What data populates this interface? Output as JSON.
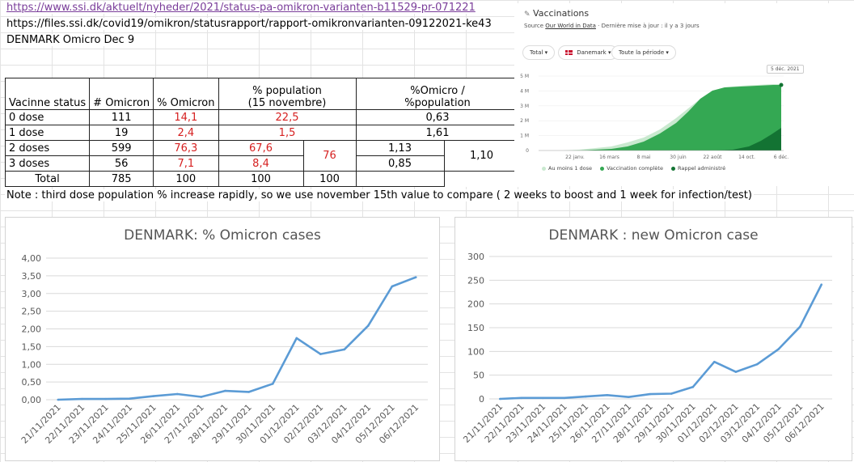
{
  "header": {
    "link1": "https://www.ssi.dk/aktuelt/nyheder/2021/status-pa-omikron-varianten-b11529-pr-071221",
    "link2": "https://files.ssi.dk/covid19/omikron/statusrapport/rapport-omikronvarianten-09122021-ke43",
    "title": "DENMARK Omicro  Dec 9"
  },
  "table": {
    "h_status": "Vacinne status",
    "h_omicron": "# Omicron",
    "h_pct_omicron": "% Omicron",
    "h_pct_pop_1": "% population",
    "h_pct_pop_2": "(15 novembre)",
    "h_ratio_1": "%Omicro /",
    "h_ratio_2": "%population",
    "rows": [
      {
        "status": "0 dose",
        "count": "111",
        "pct": "14,1",
        "pop": "22,5",
        "ratio": "0,63"
      },
      {
        "status": "1 dose",
        "count": "19",
        "pct": "2,4",
        "pop": "1,5",
        "ratio": "1,61"
      },
      {
        "status": "2 doses",
        "count": "599",
        "pct": "76,3",
        "pop": "67,6",
        "ratio": "1,13"
      },
      {
        "status": "3 doses",
        "count": "56",
        "pct": "7,1",
        "pop": "8,4",
        "ratio": "0,85"
      }
    ],
    "merged_pop_23": "76",
    "merged_ratio_23": "1,10",
    "total": {
      "status": "Total",
      "count": "785",
      "pct": "100",
      "pop": "100",
      "pop2": "100"
    }
  },
  "note": "Note : third dose population % increase rapidly, so we use november 15th value to compare ( 2 weeks to boost and 1 week for infection/test)",
  "vaccinations": {
    "title": "Vaccinations",
    "source_prefix": "Source",
    "source_link": "Our World in Data",
    "source_suffix": "· Dernière mise à jour : il y a 3 jours",
    "filter_total": "Total",
    "filter_country": "Danemark",
    "filter_period": "Toute la période",
    "tooltip": "5 déc. 2021",
    "y_ticks": [
      "5 M",
      "4 M",
      "3 M",
      "2 M",
      "1 M",
      "0"
    ],
    "x_ticks": [
      "22 janv.",
      "16 mars",
      "8 mai",
      "30 juin",
      "22 août",
      "14 oct.",
      "6 déc."
    ],
    "legend": [
      "Au moins 1 dose",
      "Vaccination complète",
      "Rappel administré"
    ],
    "colors": {
      "one_dose": "#c9e9cf",
      "complete": "#34a853",
      "booster": "#137333"
    }
  },
  "chart_data": [
    {
      "type": "line",
      "title": "DENMARK: % Omicron cases",
      "categories": [
        "21/11/2021",
        "22/11/2021",
        "23/11/2021",
        "24/11/2021",
        "25/11/2021",
        "26/11/2021",
        "27/11/2021",
        "28/11/2021",
        "29/11/2021",
        "30/11/2021",
        "01/12/2021",
        "02/12/2021",
        "03/12/2021",
        "04/12/2021",
        "05/12/2021",
        "06/12/2021"
      ],
      "values": [
        0.0,
        0.02,
        0.02,
        0.03,
        0.1,
        0.16,
        0.08,
        0.25,
        0.22,
        0.45,
        1.74,
        1.29,
        1.42,
        2.09,
        3.2,
        3.46
      ],
      "ylim": [
        0,
        4
      ],
      "y_ticks": [
        "0,00",
        "0,50",
        "1,00",
        "1,50",
        "2,00",
        "2,50",
        "3,00",
        "3,50",
        "4,00"
      ],
      "color": "#5b9bd5"
    },
    {
      "type": "line",
      "title": "DENMARK : new Omicron case",
      "categories": [
        "21/11/2021",
        "22/11/2021",
        "23/11/2021",
        "24/11/2021",
        "25/11/2021",
        "26/11/2021",
        "27/11/2021",
        "28/11/2021",
        "29/11/2021",
        "30/11/2021",
        "01/12/2021",
        "02/12/2021",
        "03/12/2021",
        "04/12/2021",
        "05/12/2021",
        "06/12/2021"
      ],
      "values": [
        0,
        2,
        2,
        2,
        5,
        8,
        4,
        10,
        11,
        25,
        78,
        57,
        73,
        105,
        152,
        241
      ],
      "ylim": [
        0,
        300
      ],
      "y_ticks": [
        "0",
        "50",
        "100",
        "150",
        "200",
        "250",
        "300"
      ],
      "color": "#5b9bd5"
    }
  ]
}
